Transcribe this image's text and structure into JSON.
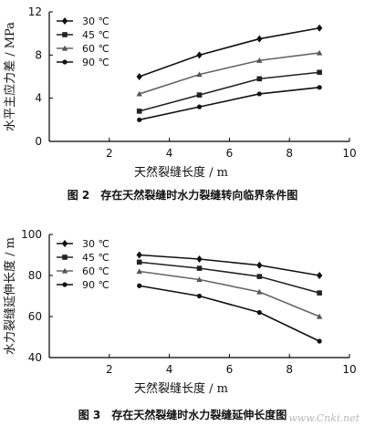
{
  "chart_data": [
    {
      "type": "line",
      "x": [
        3,
        5,
        7,
        9
      ],
      "series": [
        {
          "name": "30 ℃",
          "values": [
            6.0,
            8.0,
            9.5,
            10.5
          ],
          "marker": "diamond"
        },
        {
          "name": "45 ℃",
          "values": [
            2.8,
            4.3,
            5.8,
            6.4
          ],
          "marker": "square"
        },
        {
          "name": "60 ℃",
          "values": [
            4.4,
            6.2,
            7.5,
            8.2
          ],
          "marker": "triangle"
        },
        {
          "name": "90 ℃",
          "values": [
            2.0,
            3.2,
            4.4,
            5.0
          ],
          "marker": "circle"
        }
      ],
      "xlabel": "天然裂缝长度 / m",
      "ylabel": "水平主应力差 / MPa",
      "xlim": [
        0,
        10
      ],
      "ylim": [
        0,
        12
      ],
      "xticks": [
        "2",
        "4",
        "6",
        "8",
        "10"
      ],
      "yticks": [
        "0",
        "4",
        "8",
        "12"
      ],
      "legend_position": "top-left",
      "grid": false
    },
    {
      "type": "line",
      "x": [
        3,
        5,
        7,
        9
      ],
      "series": [
        {
          "name": "30 ℃",
          "values": [
            90,
            88,
            85,
            80
          ],
          "marker": "diamond"
        },
        {
          "name": "45 ℃",
          "values": [
            86.5,
            83.5,
            79.5,
            71.5
          ],
          "marker": "square"
        },
        {
          "name": "60 ℃",
          "values": [
            82,
            78,
            72,
            60
          ],
          "marker": "triangle"
        },
        {
          "name": "90 ℃",
          "values": [
            75,
            70,
            62,
            48
          ],
          "marker": "circle"
        }
      ],
      "xlabel": "天然裂缝长度 / m",
      "ylabel": "水力裂缝延伸长度 / m",
      "xlim": [
        0,
        10
      ],
      "ylim": [
        40,
        100
      ],
      "xticks": [
        "2",
        "4",
        "6",
        "8",
        "10"
      ],
      "yticks": [
        "40",
        "60",
        "80",
        "100"
      ],
      "legend_position": "top-left",
      "grid": false
    }
  ],
  "captions": {
    "fig2": "图 2　存在天然裂缝时水力裂缝转向临界条件图",
    "fig3": "图 3　存在天然裂缝时水力裂缝延伸长度图"
  },
  "watermark": "www.Cnki.net"
}
